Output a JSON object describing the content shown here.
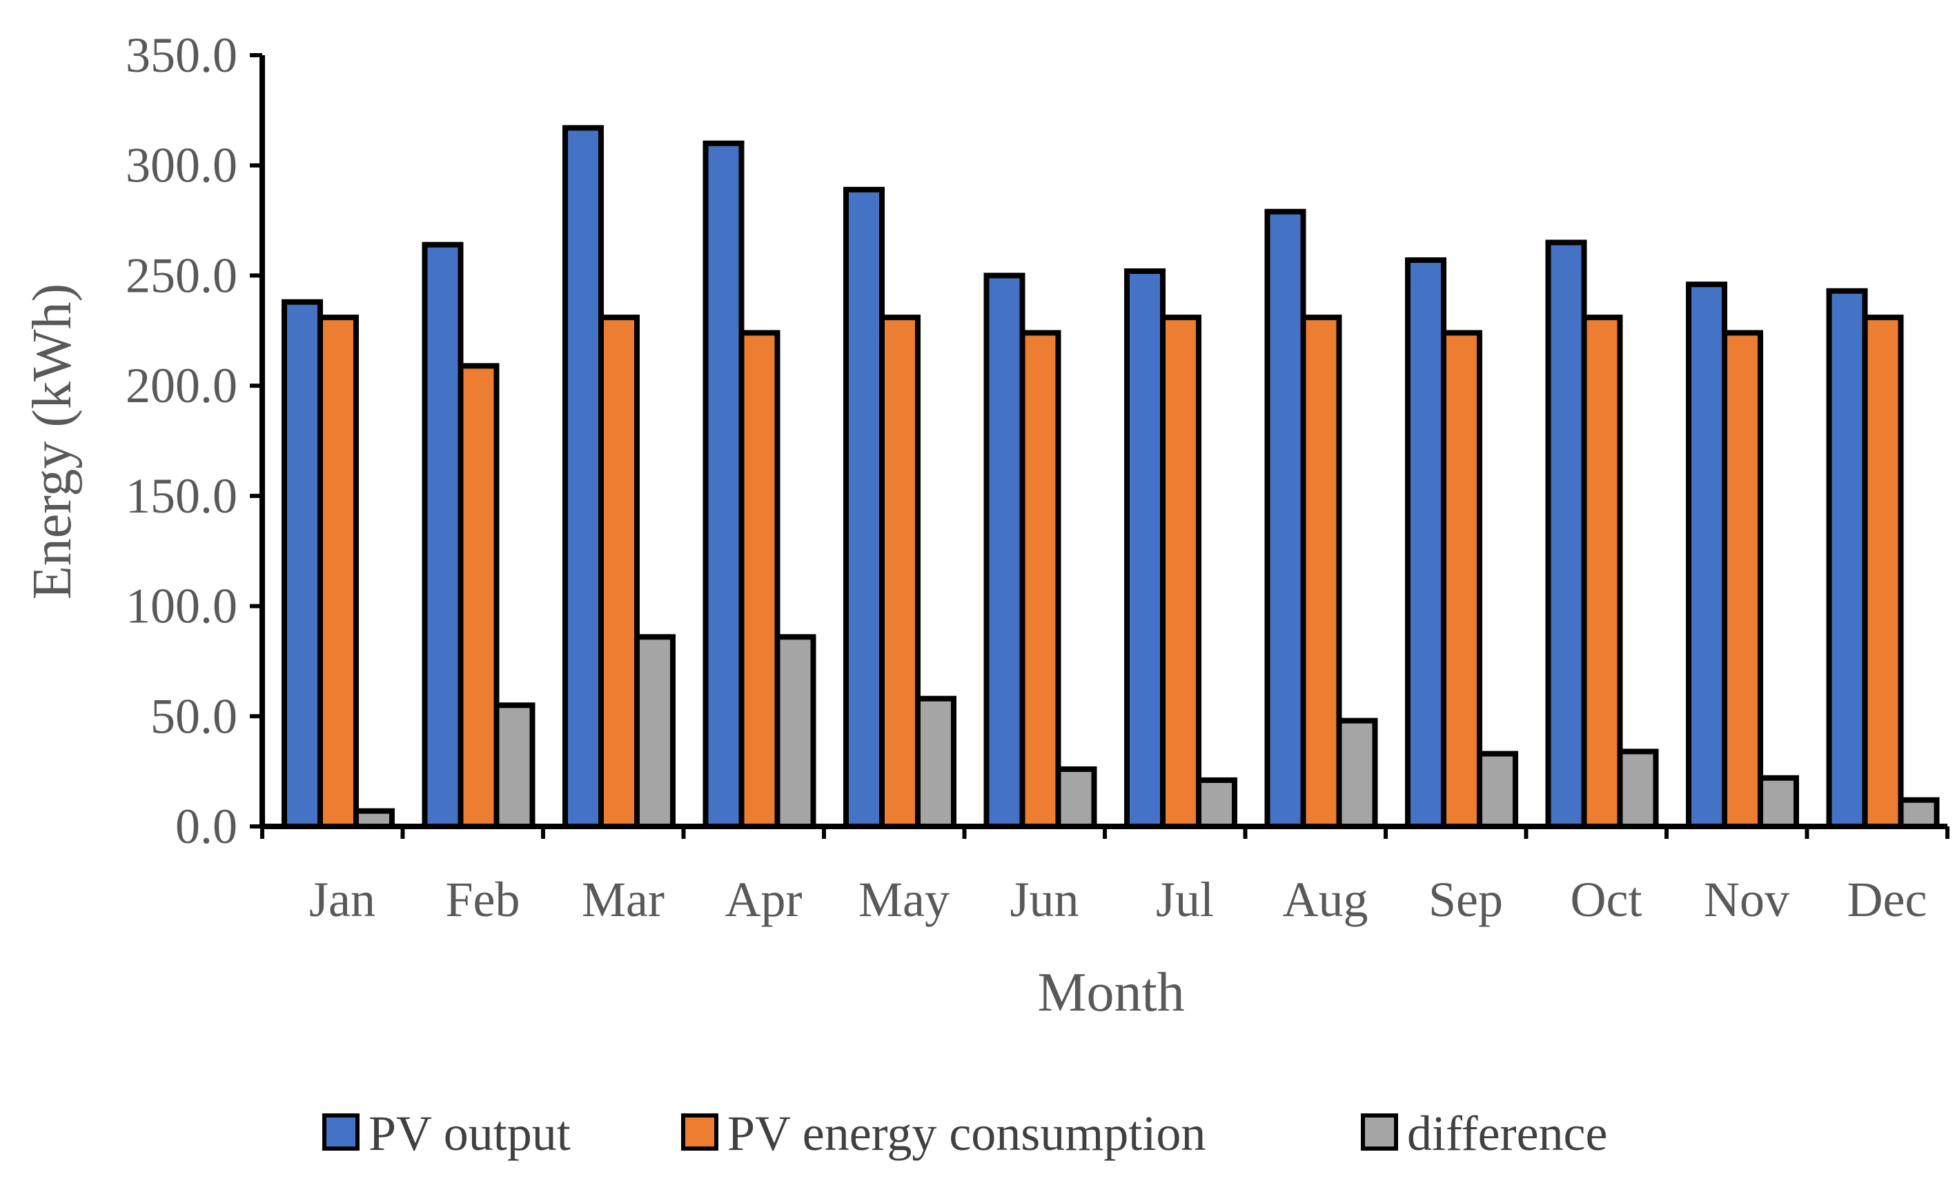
{
  "chart_data": {
    "type": "bar",
    "title": "",
    "xlabel": "Month",
    "ylabel": "Energy (kWh)",
    "ylim": [
      0,
      350
    ],
    "ytick_step": 50,
    "ytick_labels": [
      "0.0",
      "50.0",
      "100.0",
      "150.0",
      "200.0",
      "250.0",
      "300.0",
      "350.0"
    ],
    "grid": false,
    "legend_position": "bottom",
    "categories": [
      "Jan",
      "Feb",
      "Mar",
      "Apr",
      "May",
      "Jun",
      "Jul",
      "Aug",
      "Sep",
      "Oct",
      "Nov",
      "Dec"
    ],
    "series": [
      {
        "name": "PV output",
        "color": "#4472C4",
        "values": [
          238,
          264,
          317,
          310,
          289,
          250,
          252,
          279,
          257,
          265,
          246,
          243
        ]
      },
      {
        "name": "PV energy consumption",
        "color": "#ED7D31",
        "values": [
          231,
          209,
          231,
          224,
          231,
          224,
          231,
          231,
          224,
          231,
          224,
          231
        ]
      },
      {
        "name": "difference",
        "color": "#A5A5A5",
        "values": [
          7,
          55,
          86,
          86,
          58,
          26,
          21,
          48,
          33,
          34,
          22,
          12
        ]
      }
    ]
  }
}
